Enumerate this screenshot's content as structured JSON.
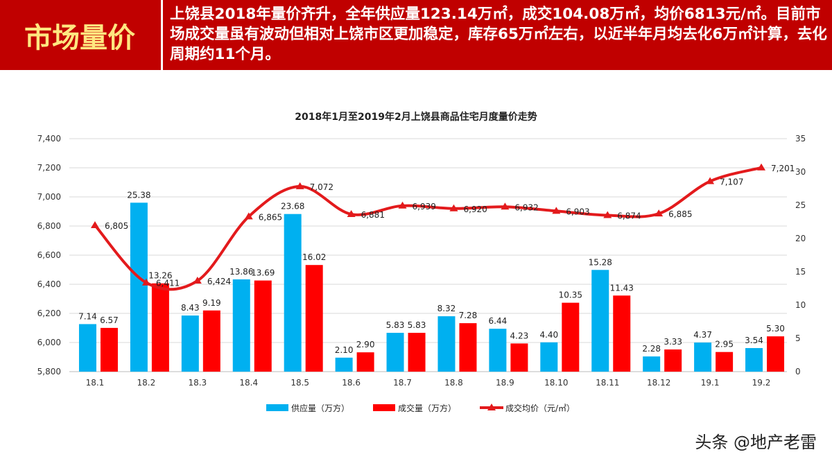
{
  "header": {
    "title": "市场量价",
    "text": "上饶县2018年量价齐升，全年供应量123.14万㎡，成交104.08万㎡，均价6813元/㎡。目前市场成交量虽有波动但相对上饶市区更加稳定，库存65万㎡左右，以近半年月均去化6万㎡计算，去化周期约11个月。"
  },
  "watermark": "头条 @地产老雷",
  "chart_data": {
    "type": "bar+line",
    "title": "2018年1月至2019年2月上饶县商品住宅月度量价走势",
    "categories": [
      "18.1",
      "18.2",
      "18.3",
      "18.4",
      "18.5",
      "18.6",
      "18.7",
      "18.8",
      "18.9",
      "18.10",
      "18.11",
      "18.12",
      "19.1",
      "19.2"
    ],
    "left_axis": {
      "range": [
        5800,
        7400
      ],
      "ticks": [
        "5,800",
        "6,000",
        "6,200",
        "6,400",
        "6,600",
        "6,800",
        "7,000",
        "7,200",
        "7,400"
      ]
    },
    "right_axis": {
      "range": [
        0,
        35
      ],
      "ticks": [
        "0",
        "5",
        "10",
        "15",
        "20",
        "25",
        "30",
        "35"
      ]
    },
    "grid": "horizontal",
    "legend_position": "bottom",
    "series": [
      {
        "name": "供应量（万方）",
        "type": "bar",
        "axis": "right",
        "color": "#00b0f0",
        "values": [
          7.14,
          25.38,
          8.43,
          13.86,
          23.68,
          2.1,
          5.83,
          8.32,
          6.44,
          4.4,
          15.28,
          2.28,
          4.37,
          3.54
        ],
        "labels": [
          "7.14",
          "25.38",
          "8.43",
          "13.86",
          "23.68",
          "2.10",
          "5.83",
          "8.32",
          "6.44",
          "4.40",
          "15.28",
          "2.28",
          "4.37",
          "3.54"
        ]
      },
      {
        "name": "成交量（万方）",
        "type": "bar",
        "axis": "right",
        "color": "#ff0000",
        "values": [
          6.57,
          13.26,
          9.19,
          13.69,
          16.02,
          2.9,
          5.83,
          7.28,
          4.23,
          10.35,
          11.43,
          3.33,
          2.95,
          5.3
        ],
        "labels": [
          "6.57",
          "13.26",
          "9.19",
          "13.69",
          "16.02",
          "2.90",
          "5.83",
          "7.28",
          "4.23",
          "10.35",
          "11.43",
          "3.33",
          "2.95",
          "5.30"
        ]
      },
      {
        "name": "成交均价（元/㎡）",
        "type": "line",
        "axis": "left",
        "color": "#e31a1c",
        "values": [
          6805,
          6411,
          6424,
          6865,
          7072,
          6881,
          6939,
          6920,
          6932,
          6903,
          6874,
          6885,
          7107,
          7201
        ],
        "labels": [
          "6,805",
          "6,411",
          "6,424",
          "6,865",
          "7,072",
          "6,881",
          "6,939",
          "6,920",
          "6,932",
          "6,903",
          "6,874",
          "6,885",
          "7,107",
          "7,201"
        ]
      }
    ]
  }
}
